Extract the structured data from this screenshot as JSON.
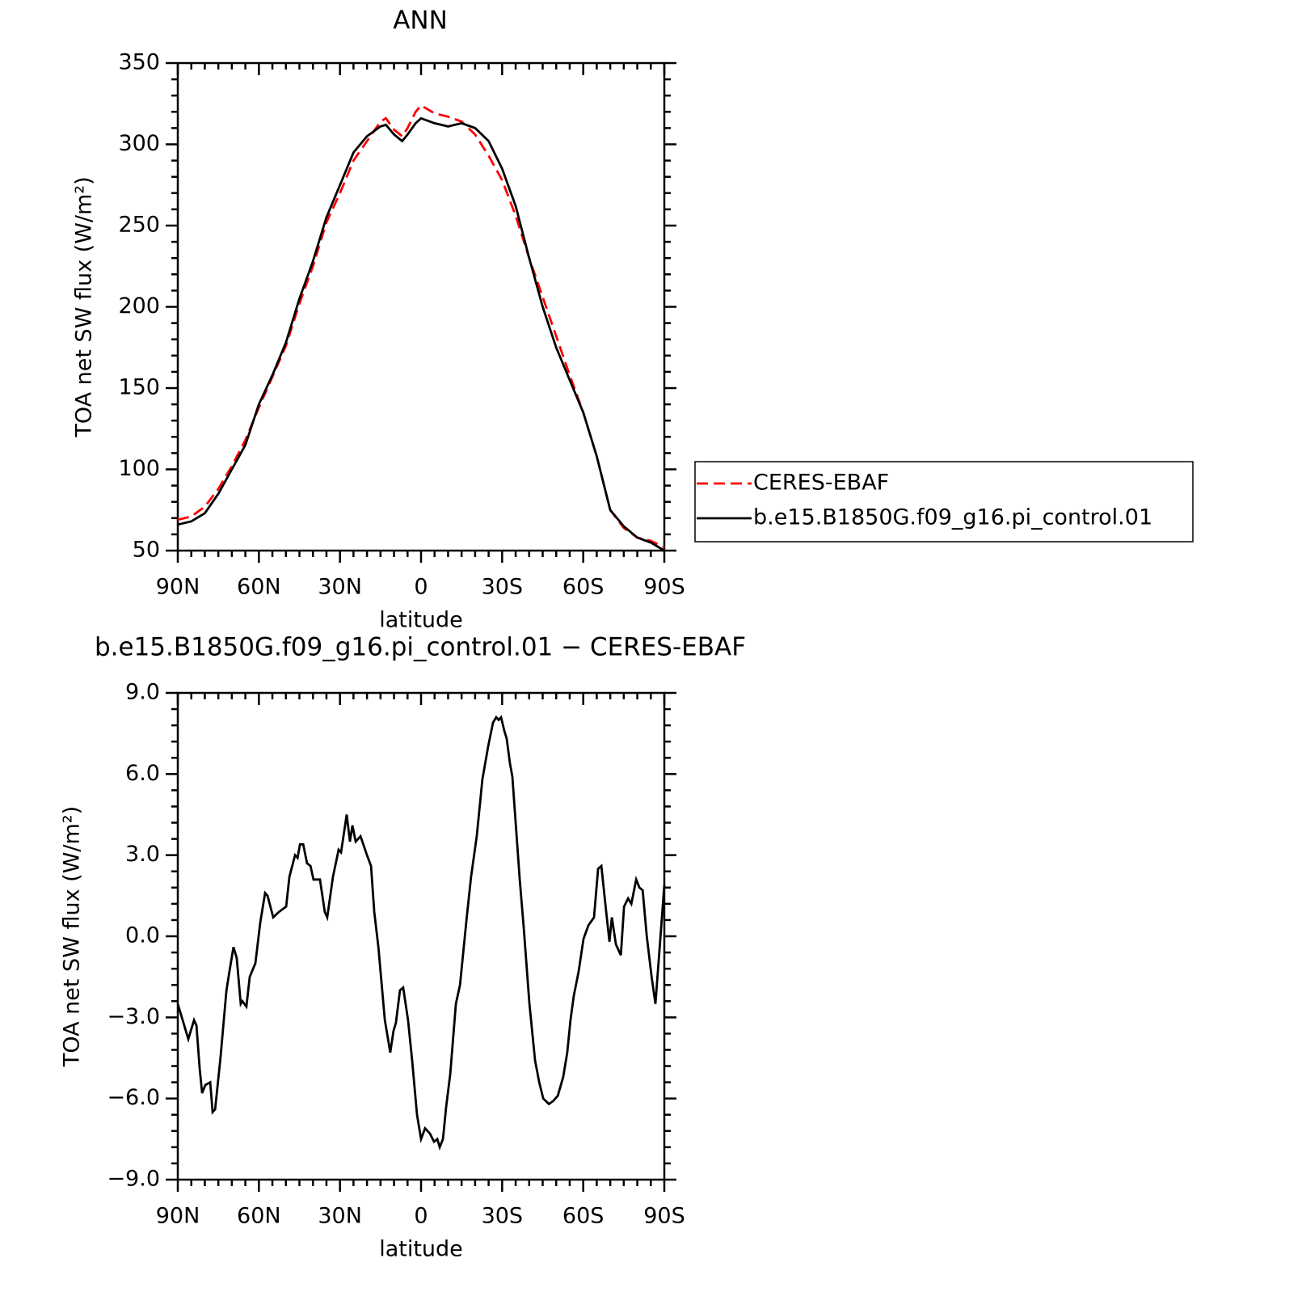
{
  "chart_data": [
    {
      "type": "line",
      "title": "ANN",
      "xlabel": "latitude",
      "ylabel": "TOA net SW flux (W/m²)",
      "x": [
        90,
        85,
        80,
        75,
        70,
        65,
        60,
        55,
        50,
        45,
        40,
        35,
        30,
        25,
        20,
        15,
        13,
        10,
        7,
        5,
        2,
        0,
        -5,
        -10,
        -15,
        -20,
        -25,
        -30,
        -35,
        -40,
        -45,
        -50,
        -55,
        -60,
        -65,
        -70,
        -75,
        -80,
        -85,
        -90
      ],
      "series": [
        {
          "name": "CERES-EBAF",
          "color": "#ff0000",
          "style": "dashed",
          "values": [
            69,
            71,
            77,
            88,
            102,
            118,
            138,
            157,
            176,
            202,
            225,
            252,
            270,
            290,
            302,
            314,
            316,
            309,
            305,
            310,
            320,
            324,
            319,
            317,
            314,
            306,
            293,
            278,
            256,
            230,
            206,
            182,
            158,
            135,
            108,
            75,
            64,
            58,
            56,
            52
          ]
        },
        {
          "name": "b.e15.B1850G.f09_g16.pi_control.01",
          "color": "#000000",
          "style": "solid",
          "values": [
            66,
            68,
            73,
            85,
            100,
            115,
            140,
            158,
            178,
            205,
            228,
            255,
            275,
            295,
            305,
            311,
            312,
            306,
            302,
            306,
            313,
            316,
            313,
            311,
            313,
            310,
            302,
            285,
            262,
            230,
            200,
            175,
            155,
            135,
            108,
            75,
            65,
            58,
            55,
            50
          ]
        }
      ],
      "xlim": [
        90,
        -90
      ],
      "xticks": [
        {
          "value": 90,
          "label": "90N"
        },
        {
          "value": 60,
          "label": "60N"
        },
        {
          "value": 30,
          "label": "30N"
        },
        0,
        {
          "value": -30,
          "label": "30S"
        },
        {
          "value": -60,
          "label": "60S"
        },
        {
          "value": -90,
          "label": "90S"
        }
      ],
      "ylim": [
        50,
        350
      ],
      "yticks": [
        50,
        100,
        150,
        200,
        250,
        300,
        350
      ],
      "legend": "right"
    },
    {
      "type": "line",
      "title": "b.e15.B1850G.f09_g16.pi_control.01 − CERES-EBAF",
      "xlabel": "latitude",
      "ylabel": "TOA net SW flux (W/m²)",
      "x": [
        90,
        87.6,
        86.1,
        84,
        83.1,
        81.9,
        81,
        79.8,
        78,
        77.1,
        76.2,
        74.2,
        72,
        70.9,
        69.4,
        68.2,
        66.7,
        66.1,
        64.6,
        63.4,
        61.3,
        59.5,
        57.7,
        56.8,
        54.7,
        52.6,
        49.9,
        48.7,
        46.6,
        45.7,
        44.8,
        43.6,
        42.2,
        40.9,
        39.8,
        37.4,
        35.6,
        34.7,
        32.6,
        30.5,
        29.6,
        27.5,
        26.3,
        25.4,
        24.2,
        22.4,
        20,
        18.5,
        17.3,
        15.8,
        13.4,
        11.4,
        10.2,
        9.3,
        7.8,
        6.6,
        4.8,
        3.3,
        1.5,
        0,
        -1.5,
        -3.3,
        -4.8,
        -6,
        -6.9,
        -8.1,
        -9.3,
        -10.8,
        -12.9,
        -14.4,
        -16.8,
        -18.5,
        -20.6,
        -22.7,
        -24.8,
        -26.6,
        -27.8,
        -28.7,
        -29.6,
        -30.8,
        -31.7,
        -32.9,
        -33.8,
        -36.5,
        -38,
        -40.1,
        -42.2,
        -43.7,
        -45.2,
        -47.3,
        -48.8,
        -50.6,
        -52.6,
        -54.1,
        -55.3,
        -56.5,
        -58.3,
        -60.1,
        -61.9,
        -64,
        -65.5,
        -66.7,
        -68.5,
        -69.7,
        -70.6,
        -72.1,
        -73.9,
        -75.1,
        -76.6,
        -77.8,
        -79.6,
        -80.8,
        -82,
        -83.5,
        -85.3,
        -86.7,
        -88.6,
        -90
      ],
      "values": [
        -2.5,
        -3.3,
        -3.8,
        -3.1,
        -3.3,
        -4.9,
        -5.8,
        -5.5,
        -5.4,
        -6.5,
        -6.4,
        -4.5,
        -2,
        -1.3,
        -0.4,
        -0.8,
        -2.5,
        -2.4,
        -2.6,
        -1.5,
        -1,
        0.5,
        1.6,
        1.5,
        0.7,
        0.9,
        1.1,
        2.2,
        3,
        2.9,
        3.4,
        3.4,
        2.7,
        2.6,
        2.1,
        2.1,
        0.9,
        0.7,
        2.2,
        3.2,
        3.1,
        4.5,
        3.5,
        4.1,
        3.5,
        3.7,
        3,
        2.6,
        0.9,
        -0.4,
        -3.1,
        -4.3,
        -3.5,
        -3.2,
        -2,
        -1.9,
        -3.1,
        -4.6,
        -6.6,
        -7.5,
        -7.1,
        -7.3,
        -7.6,
        -7.5,
        -7.8,
        -7.5,
        -6.3,
        -5.1,
        -2.5,
        -1.8,
        0.6,
        2.2,
        3.7,
        5.8,
        7,
        7.9,
        8.1,
        8,
        8.1,
        7.6,
        7.3,
        6.4,
        5.9,
        2.1,
        0.3,
        -2.5,
        -4.6,
        -5.4,
        -6,
        -6.2,
        -6.1,
        -5.9,
        -5.2,
        -4.3,
        -3.1,
        -2.2,
        -1.3,
        -0.1,
        0.4,
        0.7,
        2.5,
        2.6,
        0.9,
        -0.2,
        0.7,
        -0.3,
        -0.7,
        1.1,
        1.4,
        1.2,
        2.1,
        1.8,
        1.7,
        0,
        -1.5,
        -2.5,
        0,
        1.9
      ],
      "color": "#000000",
      "xlim": [
        90,
        -90
      ],
      "xticks": [
        {
          "value": 90,
          "label": "90N"
        },
        {
          "value": 60,
          "label": "60N"
        },
        {
          "value": 30,
          "label": "30N"
        },
        0,
        {
          "value": -30,
          "label": "30S"
        },
        {
          "value": -60,
          "label": "60S"
        },
        {
          "value": -90,
          "label": "90S"
        }
      ],
      "ylim": [
        -9,
        9
      ],
      "yticks": [
        {
          "value": -9,
          "label": "−9.0"
        },
        {
          "value": -6,
          "label": "−6.0"
        },
        {
          "value": -3,
          "label": "−3.0"
        },
        {
          "value": 0,
          "label": "0.0"
        },
        {
          "value": 3,
          "label": "3.0"
        },
        {
          "value": 6,
          "label": "6.0"
        },
        {
          "value": 9,
          "label": "9.0"
        }
      ]
    }
  ]
}
